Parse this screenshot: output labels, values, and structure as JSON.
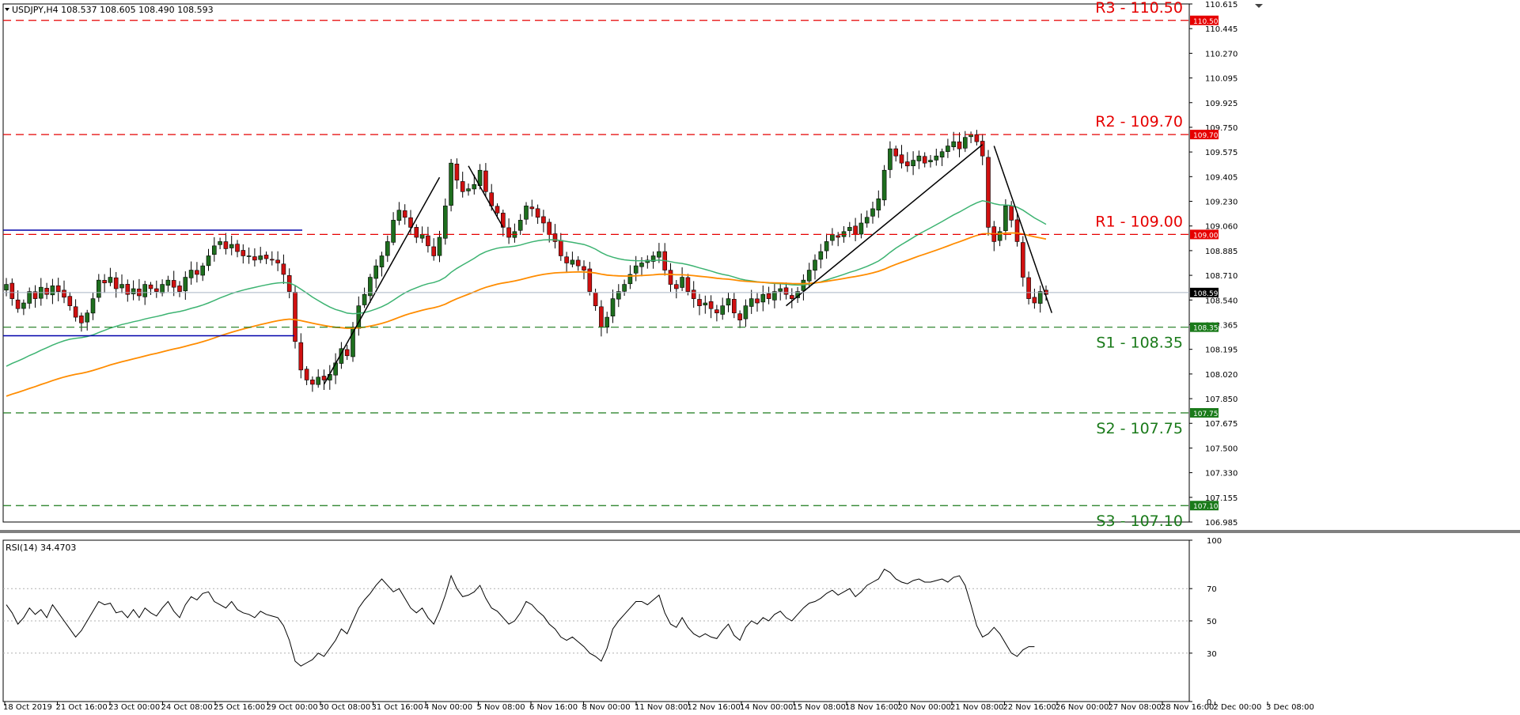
{
  "chart_data": [
    {
      "type": "candlestick",
      "symbol_header": "USDJPY,H4  108.537 108.605 108.490 108.593",
      "ylim": [
        106.985,
        110.615
      ],
      "y_ticks": [
        "110.615",
        "110.445",
        "110.270",
        "110.095",
        "109.925",
        "109.750",
        "109.575",
        "109.405",
        "109.230",
        "109.060",
        "108.885",
        "108.710",
        "108.540",
        "108.365",
        "108.195",
        "108.020",
        "107.850",
        "107.675",
        "107.500",
        "107.330",
        "107.155",
        "106.985"
      ],
      "x_ticks": [
        "18 Oct 2019",
        "21 Oct 16:00",
        "23 Oct 00:00",
        "24 Oct 08:00",
        "25 Oct 16:00",
        "29 Oct 00:00",
        "30 Oct 08:00",
        "31 Oct 16:00",
        "4 Nov 00:00",
        "5 Nov 08:00",
        "6 Nov 16:00",
        "8 Nov 00:00",
        "11 Nov 08:00",
        "12 Nov 16:00",
        "14 Nov 00:00",
        "15 Nov 08:00",
        "18 Nov 16:00",
        "20 Nov 00:00",
        "21 Nov 08:00",
        "22 Nov 16:00",
        "26 Nov 00:00",
        "27 Nov 08:00",
        "28 Nov 16:00",
        "2 Dec 00:00",
        "3 Dec 08:00"
      ],
      "current_price": "108.593",
      "close_series": [
        108.65,
        108.55,
        108.48,
        108.52,
        108.6,
        108.55,
        108.63,
        108.58,
        108.64,
        108.6,
        108.56,
        108.5,
        108.42,
        108.38,
        108.45,
        108.55,
        108.68,
        108.66,
        108.7,
        108.62,
        108.65,
        108.58,
        108.62,
        108.57,
        108.65,
        108.62,
        108.6,
        108.65,
        108.68,
        108.63,
        108.6,
        108.7,
        108.75,
        108.72,
        108.78,
        108.85,
        108.92,
        108.95,
        108.9,
        108.93,
        108.88,
        108.85,
        108.85,
        108.82,
        108.85,
        108.83,
        108.82,
        108.8,
        108.72,
        108.6,
        108.25,
        108.05,
        107.98,
        107.95,
        108.0,
        107.98,
        108.02,
        108.1,
        108.2,
        108.15,
        108.35,
        108.5,
        108.58,
        108.7,
        108.78,
        108.85,
        108.95,
        109.1,
        109.17,
        109.12,
        109.05,
        108.98,
        109.0,
        108.92,
        108.85,
        108.98,
        109.2,
        109.5,
        109.38,
        109.3,
        109.32,
        109.35,
        109.45,
        109.3,
        109.2,
        109.15,
        109.05,
        108.98,
        109.02,
        109.1,
        109.2,
        109.18,
        109.12,
        109.08,
        109.0,
        108.95,
        108.85,
        108.8,
        108.82,
        108.78,
        108.75,
        108.6,
        108.5,
        108.35,
        108.42,
        108.55,
        108.6,
        108.65,
        108.72,
        108.78,
        108.8,
        108.82,
        108.85,
        108.88,
        108.75,
        108.65,
        108.62,
        108.7,
        108.6,
        108.55,
        108.5,
        108.52,
        108.48,
        108.45,
        108.5,
        108.55,
        108.45,
        108.4,
        108.5,
        108.55,
        108.52,
        108.58,
        108.55,
        108.6,
        108.62,
        108.58,
        108.55,
        108.6,
        108.68,
        108.75,
        108.82,
        108.88,
        108.95,
        109.0,
        108.98,
        109.02,
        109.05,
        109.0,
        109.08,
        109.12,
        109.18,
        109.25,
        109.45,
        109.6,
        109.55,
        109.5,
        109.48,
        109.52,
        109.55,
        109.5,
        109.52,
        109.55,
        109.58,
        109.62,
        109.65,
        109.6,
        109.68,
        109.7,
        109.65,
        109.55,
        109.05,
        108.95,
        109.02,
        109.2,
        109.1,
        108.95,
        108.7,
        108.55,
        108.52,
        108.6,
        108.58
      ]
    },
    {
      "type": "line",
      "title": "RSI(14) 34.4703",
      "ylim": [
        0,
        100
      ],
      "y_ticks": [
        "100",
        "70",
        "50",
        "30",
        "0"
      ],
      "values": [
        60,
        55,
        48,
        52,
        58,
        54,
        57,
        52,
        60,
        55,
        50,
        45,
        40,
        44,
        50,
        56,
        62,
        60,
        61,
        55,
        56,
        52,
        57,
        52,
        58,
        55,
        53,
        58,
        62,
        56,
        52,
        60,
        65,
        63,
        67,
        68,
        62,
        60,
        58,
        62,
        57,
        55,
        54,
        52,
        56,
        54,
        53,
        52,
        47,
        38,
        25,
        22,
        24,
        26,
        30,
        28,
        33,
        38,
        45,
        42,
        50,
        58,
        63,
        67,
        72,
        76,
        72,
        68,
        70,
        64,
        58,
        55,
        58,
        52,
        48,
        56,
        66,
        78,
        70,
        65,
        66,
        68,
        72,
        64,
        58,
        56,
        52,
        48,
        50,
        55,
        62,
        60,
        56,
        53,
        48,
        45,
        40,
        38,
        40,
        37,
        34,
        30,
        28,
        25,
        33,
        45,
        50,
        54,
        58,
        62,
        62,
        60,
        63,
        66,
        55,
        48,
        46,
        52,
        46,
        42,
        40,
        42,
        40,
        39,
        44,
        48,
        41,
        38,
        46,
        50,
        48,
        52,
        50,
        54,
        56,
        52,
        50,
        54,
        58,
        61,
        62,
        64,
        67,
        69,
        66,
        68,
        70,
        65,
        68,
        72,
        74,
        76,
        82,
        80,
        76,
        74,
        73,
        75,
        76,
        74,
        74,
        75,
        76,
        74,
        77,
        78,
        72,
        60,
        47,
        40,
        42,
        46,
        42,
        36,
        30,
        28,
        32,
        34,
        34
      ]
    }
  ],
  "levels": [
    {
      "label": "R3 - 110.50",
      "price": 110.5,
      "box": "110.500",
      "color": "#e60000",
      "kind": "resistance"
    },
    {
      "label": "R2 - 109.70",
      "price": 109.7,
      "box": "109.700",
      "color": "#e60000",
      "kind": "resistance"
    },
    {
      "label": "R1 - 109.00",
      "price": 109.0,
      "box": "109.000",
      "color": "#e60000",
      "kind": "resistance"
    },
    {
      "label": "S1 - 108.35",
      "price": 108.35,
      "box": "108.350",
      "color": "#1a7a1a",
      "kind": "support"
    },
    {
      "label": "S2 - 107.75",
      "price": 107.75,
      "box": "107.750",
      "color": "#1a7a1a",
      "kind": "support"
    },
    {
      "label": "S3 - 107.10",
      "price": 107.1,
      "box": "107.100",
      "color": "#1a7a1a",
      "kind": "support"
    }
  ],
  "colors": {
    "bull": "#1e6e1e",
    "bear": "#d01010",
    "ma_fast": "#3cb371",
    "ma_slow": "#ff8c00",
    "range": "#0000aa",
    "trend": "#000000",
    "current": "#000000"
  }
}
